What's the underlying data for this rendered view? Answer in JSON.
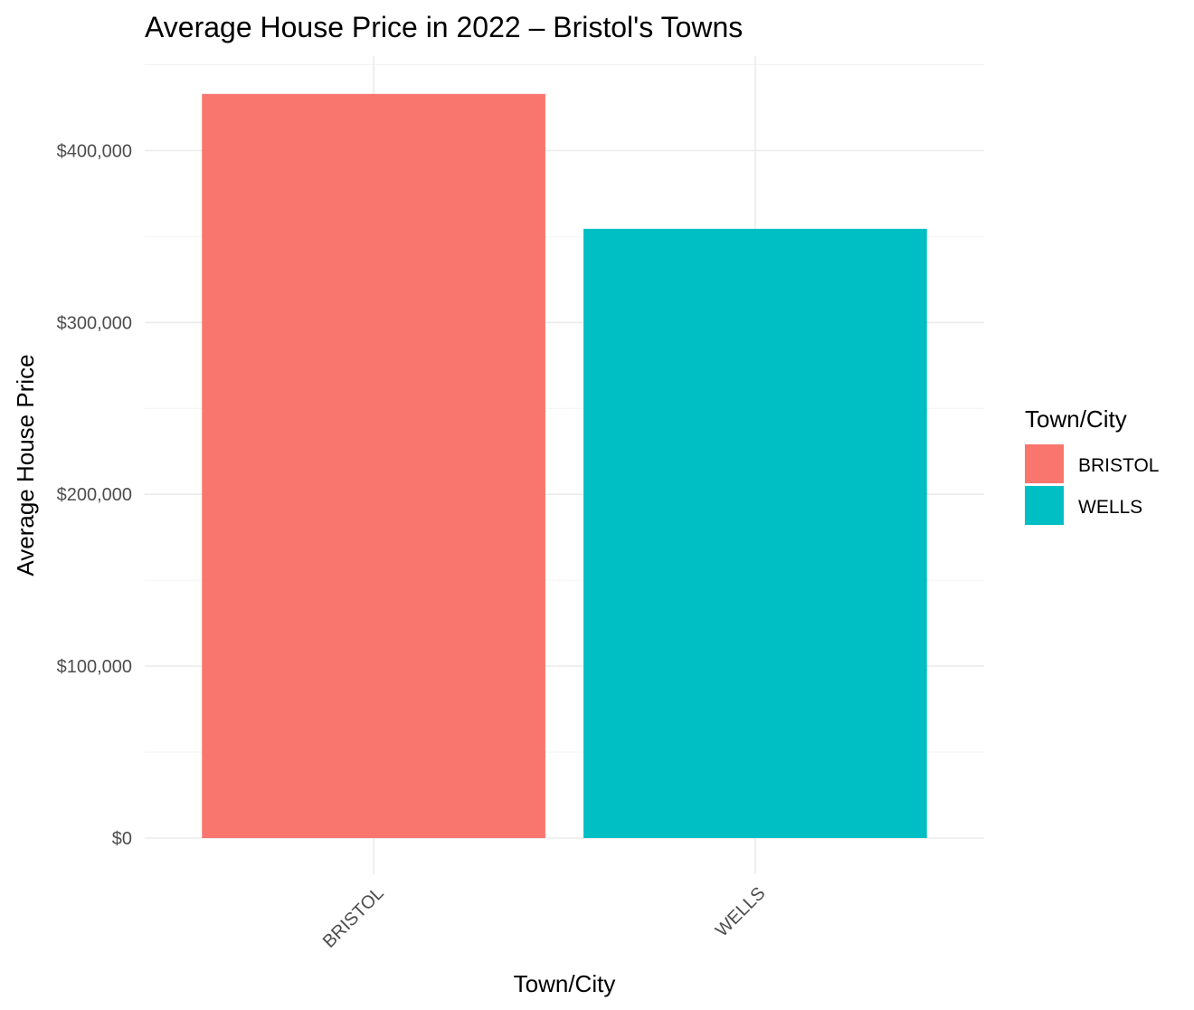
{
  "chart_data": {
    "type": "bar",
    "title": "Average House Price in 2022 – Bristol's Towns",
    "xlabel": "Town/City",
    "ylabel": "Average House Price",
    "categories": [
      "BRISTOL",
      "WELLS"
    ],
    "values": [
      433000,
      354500
    ],
    "colors": [
      "#F8766D",
      "#00BFC4"
    ],
    "ylim": [
      0,
      455000
    ],
    "yticks": [
      0,
      100000,
      200000,
      300000,
      400000
    ],
    "ytick_labels": [
      "$0",
      "$100,000",
      "$200,000",
      "$300,000",
      "$400,000"
    ],
    "grid": true,
    "legend": {
      "title": "Town/City",
      "position": "right",
      "entries": [
        "BRISTOL",
        "WELLS"
      ]
    }
  }
}
